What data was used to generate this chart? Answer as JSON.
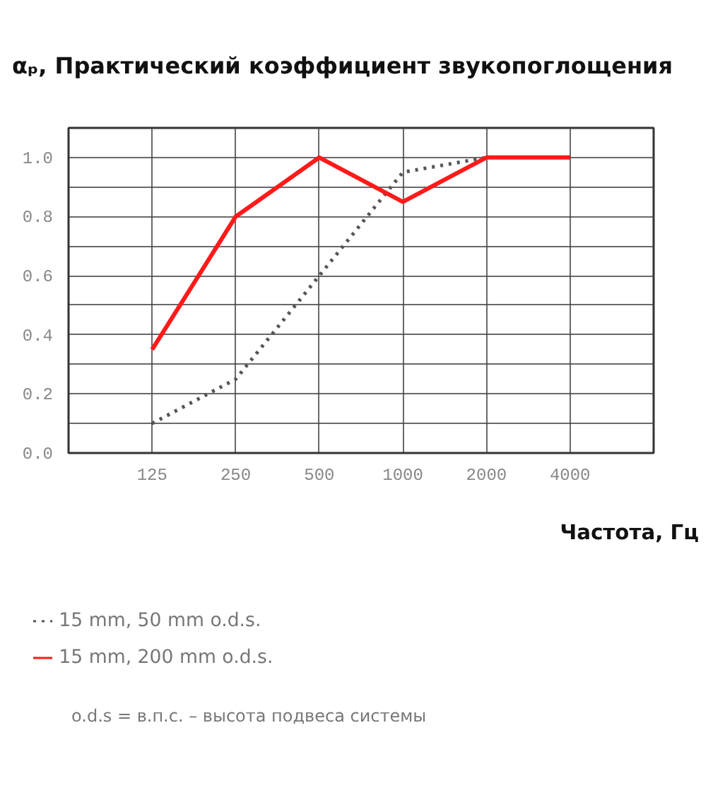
{
  "chart_data": {
    "type": "line",
    "title": "αₚ, Практический коэффициент звукопоглощения",
    "xlabel": "Частота, Гц",
    "categories": [
      "125",
      "250",
      "500",
      "1000",
      "2000",
      "4000"
    ],
    "series": [
      {
        "name": "15 mm, 50 mm o.d.s.",
        "color": "#555555",
        "line_style": "dotted",
        "values": [
          0.1,
          0.25,
          0.6,
          0.95,
          1.0,
          1.0
        ]
      },
      {
        "name": "15 mm, 200 mm o.d.s.",
        "color": "#ff1a1a",
        "line_style": "solid",
        "values": [
          0.35,
          0.8,
          1.0,
          0.85,
          1.0,
          1.0
        ]
      }
    ],
    "ylim": [
      0,
      1.1
    ],
    "yticks": [
      {
        "value": 0,
        "label": "0.0"
      },
      {
        "value": 0.1,
        "label": null
      },
      0.2,
      {
        "value": 0.3,
        "label": null
      },
      0.4,
      {
        "value": 0.5,
        "label": null
      },
      0.6,
      {
        "value": 0.7,
        "label": null
      },
      0.8,
      {
        "value": 0.9,
        "label": null
      },
      {
        "value": 1.0,
        "label": "1.0"
      },
      {
        "value": 1.1,
        "label": null
      }
    ],
    "grid": true,
    "legend": "bottom",
    "marker": "none",
    "annotations": [
      "o.d.s = в.п.с. – высота подвеса системы"
    ]
  }
}
